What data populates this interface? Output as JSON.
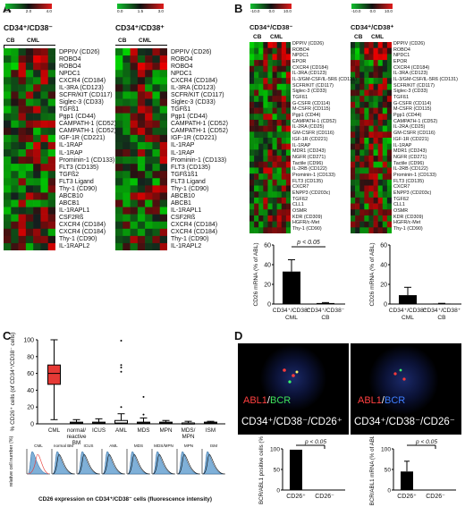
{
  "panels": {
    "A": {
      "letter": "A",
      "scale_ticks_1": [
        "0.0",
        "2.0",
        "4.0"
      ],
      "scale_ticks_2": [
        "0.0",
        "1.5",
        "3.0"
      ],
      "title_1": "CD34⁺/CD38⁻",
      "title_2": "CD34⁺/CD38⁺",
      "group_cb": "CB",
      "group_cml": "CML",
      "genes_1": [
        "DPPIV (CD26)",
        "ROBO4",
        "ROBO4",
        "NPDC1",
        "CXCR4 (CD184)",
        "IL-3RA (CD123)",
        "SCFR/KIT (CD117)",
        "Siglec-3 (CD33)",
        "TGFß1",
        "Pgp1 (CD44)",
        "CAMPATH-1 (CD52)",
        "CAMPATH-1 (CD52)",
        "IGF-1R (CD221)",
        "IL-1RAP",
        "IL-1RAP",
        "Prominin-1 (CD133)",
        "FLT3 (CD135)",
        "TGFß2",
        "FLT3 Ligand",
        "Thy-1 (CD90)",
        "ABCB10",
        "ABCB1",
        "IL-1RAPL1",
        "CSF2Rß",
        "CXCR4 (CD184)",
        "CXCR4 (CD184)",
        "Thy-1 (CD90)",
        "IL-1RAPL2"
      ],
      "genes_2": [
        "DPPIV (CD26)",
        "ROBO4",
        "ROBO4",
        "NPDC1",
        "CXCR4 (CD184)",
        "IL-3RA (CD123)",
        "SCFR/KIT (CD117)",
        "Siglec-3 (CD33)",
        "TGFß1",
        "Pgp1 (CD44)",
        "CAMPATH-1 (CD52)",
        "CAMPATH-1 (CD52)",
        "IGF-1R (CD221)",
        "IL-1RAP",
        "IL-1RAP",
        "Prominin-1 (CD133)",
        "FLT3 (CD135)",
        "TGFß1ß1",
        "FLT3 Ligand",
        "Thy-1 (CD90)",
        "ABCB10",
        "ABCB1",
        "IL-1RAPL1",
        "CSF2Rß",
        "CXCR4 (CD184)",
        "CXCR4 (CD184)",
        "Thy-1 (CD90)",
        "IL-1RAPL2"
      ]
    },
    "B": {
      "letter": "B",
      "scale_ticks_1": [
        "-10.0",
        "0.0",
        "10.0"
      ],
      "scale_ticks_2": [
        "-10.0",
        "0.0",
        "10.0"
      ],
      "title_1": "CD34⁺/CD38⁻",
      "title_2": "CD34⁺/CD38⁺",
      "group_cb": "CB",
      "group_cml": "CML",
      "genes_1": [
        "DPPIV (CD26)",
        "ROBO4",
        "NPDC1",
        "EPOR",
        "CXCR4 (CD184)",
        "IL-3RA (CD123)",
        "IL-3/GM-CSF/IL-5Rß (CD131)",
        "SCFR/KIT (CD117)",
        "Siglec-3 (CD33)",
        "TGFß1",
        "G-CSFR (CD114)",
        "M-CSFR (CD115)",
        "Pgp1 (CD44)",
        "CAMPATH-1 (CD52)",
        "IL-2RA (CD25)",
        "GM-CSFR (CD116)",
        "IGF-1R (CD221)",
        "IL-1RAP",
        "MDR1 (CD243)",
        "NGFR (CD271)",
        "Tactile (CD96)",
        "IL-2RB (CD122)",
        "Prominin-1 (CD133)",
        "FLT3 (CD135)",
        "CXCR7",
        "ENPP3 (CD203c)",
        "TGFß2",
        "CLL1",
        "OSMR",
        "KDR (CD309)",
        "HGFR/c-Met",
        "Thy-1 (CD90)"
      ],
      "genes_2": [
        "DPPIV (CD26)",
        "ROBO4",
        "NPDC1",
        "EPOR",
        "CXCR4 (CD184)",
        "IL-3RA (CD123)",
        "IL-3/GM-CSF/IL-5Rß (CD131)",
        "SCFR/KIT (CD117)",
        "Siglec-3 (CD33)",
        "TGFß1",
        "G-CSFR (CD114)",
        "M-CSFR (CD115)",
        "Pgp1 (CD44)",
        "CAMPATH-1 (CD52)",
        "IL-2RA (CD25)",
        "GM-CSFR (CD116)",
        "IGF-1R (CD221)",
        "IL-1RAP",
        "MDR1 (CD243)",
        "NGFR (CD271)",
        "Tactile (CD96)",
        "IL-2RB (CD122)",
        "Prominin-1 (CD133)",
        "FLT3 (CD135)",
        "CXCR7",
        "ENPP3 (CD203c)",
        "TGFß2",
        "CLL1",
        "OSMR",
        "KDR (CD309)",
        "HGFR/c-Met",
        "Thy-1 (CD90)"
      ],
      "bar_ylabel": "CD26 mRNA (% of ABL)",
      "bar1_ticks": [
        "0",
        "20",
        "40",
        "60"
      ],
      "bar1_pvalue": "p < 0.05",
      "bar1_cats": [
        "CD34⁺/CD38⁻",
        "CD34⁺/CD38⁻"
      ],
      "bar1_subcats": [
        "CML",
        "CB"
      ],
      "bar2_ticks": [
        "0",
        "20",
        "40",
        "60"
      ],
      "bar2_cats": [
        "CD34⁺/CD38⁺",
        "CD34⁺/CD38⁺"
      ],
      "bar2_subcats": [
        "CML",
        "CB"
      ]
    },
    "C": {
      "letter": "C",
      "ylabel": "% CD26⁺ cells (of CD34⁺/CD38⁻ cells)",
      "yticks": [
        "0",
        "20",
        "40",
        "60",
        "80",
        "100"
      ],
      "categories": [
        "CML",
        "normal/\nreactive\nBM",
        "ICUS",
        "AML",
        "MDS",
        "MPN",
        "MDS/\nMPN",
        "ISM"
      ],
      "histo_ylabel": "relative cell number (%)",
      "histo_labels": [
        "CML",
        "normal BM",
        "ICUS",
        "AML",
        "MDS",
        "MDS/MPN",
        "MPN",
        "ISM"
      ],
      "xlabel": "CD26 expression on CD34⁺/CD38⁻ cells (fluorescence intensity)"
    },
    "D": {
      "letter": "D",
      "fish_1_label_a": "ABL1",
      "fish_1_slash": "/",
      "fish_1_label_b": "BCR",
      "fish_2_label_a": "ABL1",
      "fish_2_slash": "/",
      "fish_2_label_b": "BCR",
      "fish_caption_1": "CD34⁺/CD38⁻/CD26⁺",
      "fish_caption_2": "CD34⁺/CD38⁻/CD26⁻",
      "bar1_ylabel": "BCR/ABL1 positive cells (%)",
      "bar1_ticks": [
        "0",
        "50",
        "100"
      ],
      "bar1_pvalue": "p < 0.05",
      "bar1_cats": [
        "CD26⁺",
        "CD26⁻"
      ],
      "bar2_ylabel": "BCR/ABL1 mRNA (% of ABL)",
      "bar2_ticks": [
        "0",
        "50",
        "100"
      ],
      "bar2_pvalue": "p < 0.05",
      "bar2_cats": [
        "CD26⁺",
        "CD26⁻"
      ]
    }
  },
  "chart_data": [
    {
      "type": "bar",
      "panel": "B-left",
      "categories": [
        "CD34⁺/CD38⁻ CML",
        "CD34⁺/CD38⁻ CB"
      ],
      "values": [
        33,
        1
      ],
      "errors": [
        12,
        0.5
      ],
      "ylabel": "CD26 mRNA (% of ABL)",
      "ylim": [
        0,
        60
      ],
      "annotation": "p < 0.05"
    },
    {
      "type": "bar",
      "panel": "B-right",
      "categories": [
        "CD34⁺/CD38⁺ CML",
        "CD34⁺/CD38⁺ CB"
      ],
      "values": [
        9,
        0.5
      ],
      "errors": [
        8,
        0.2
      ],
      "ylabel": "CD26 mRNA (% of ABL)",
      "ylim": [
        0,
        60
      ]
    },
    {
      "type": "box",
      "panel": "C",
      "categories": [
        "CML",
        "normal/reactive BM",
        "ICUS",
        "AML",
        "MDS",
        "MPN",
        "MDS/MPN",
        "ISM"
      ],
      "boxes": [
        {
          "min": 5,
          "q1": 47,
          "median": 60,
          "q3": 70,
          "max": 100
        },
        {
          "min": 0,
          "q1": 0,
          "median": 1,
          "q3": 2,
          "max": 5
        },
        {
          "min": 0,
          "q1": 0,
          "median": 1,
          "q3": 2,
          "max": 6
        },
        {
          "min": 0,
          "q1": 0,
          "median": 1,
          "q3": 4,
          "max": 12,
          "outliers": [
            20,
            62,
            67,
            70,
            99
          ]
        },
        {
          "min": 0,
          "q1": 0,
          "median": 1,
          "q3": 2,
          "max": 7,
          "outliers": [
            11,
            32
          ]
        },
        {
          "min": 0,
          "q1": 0,
          "median": 1,
          "q3": 2,
          "max": 4
        },
        {
          "min": 0,
          "q1": 0,
          "median": 1,
          "q3": 1,
          "max": 3
        },
        {
          "min": 0,
          "q1": 0,
          "median": 1,
          "q3": 2,
          "max": 3
        }
      ],
      "ylabel": "% CD26⁺ cells (of CD34⁺/CD38⁻ cells)",
      "ylim": [
        0,
        100
      ],
      "box_color": "#e53935"
    },
    {
      "type": "bar",
      "panel": "D-left",
      "categories": [
        "CD26⁺",
        "CD26⁻"
      ],
      "values": [
        98,
        0
      ],
      "ylabel": "BCR/ABL1 positive cells (%)",
      "ylim": [
        0,
        100
      ],
      "annotation": "p < 0.05"
    },
    {
      "type": "bar",
      "panel": "D-right",
      "categories": [
        "CD26⁺",
        "CD26⁻"
      ],
      "values": [
        45,
        0
      ],
      "errors": [
        25,
        0
      ],
      "ylabel": "BCR/ABL1 mRNA (% of ABL)",
      "ylim": [
        0,
        100
      ],
      "annotation": "p < 0.05"
    }
  ],
  "colors": {
    "heat_high": "#e31a1c",
    "heat_mid": "#111111",
    "heat_low": "#1fb73a",
    "cml_box": "#e53935"
  }
}
